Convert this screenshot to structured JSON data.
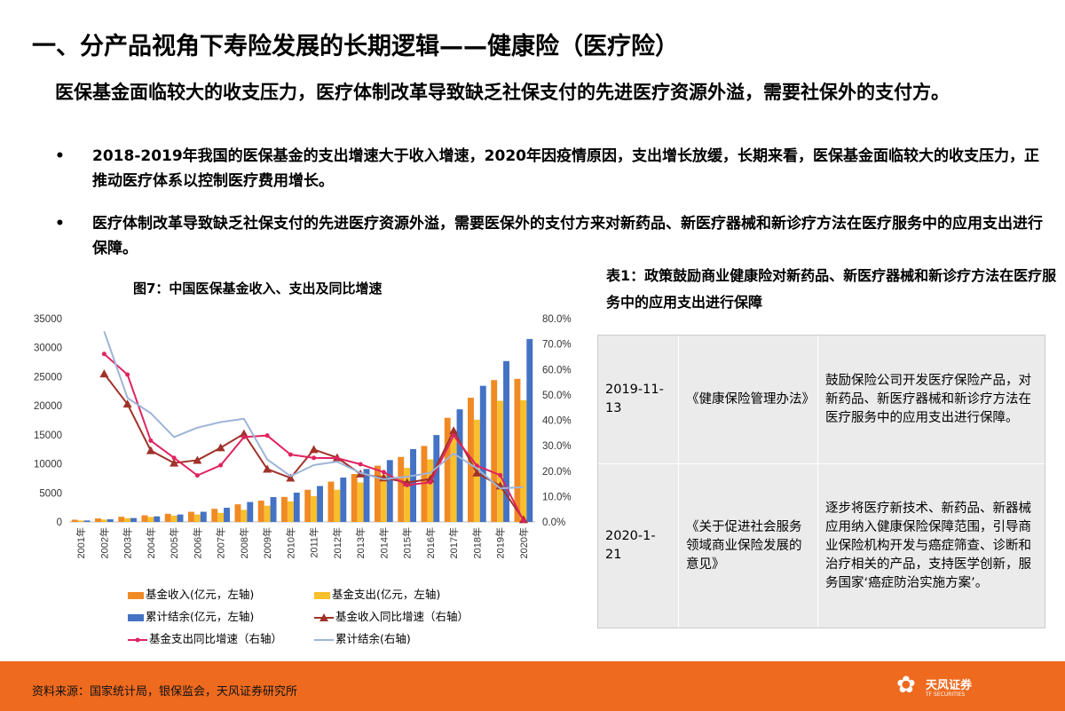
{
  "page": {
    "title": "一、分产品视角下寿险发展的长期逻辑——健康险（医疗险）",
    "headline": "医保基金面临较大的收支压力，医疗体制改革导致缺乏社保支付的先进医疗资源外溢，需要社保外的支付方。",
    "bullets": [
      {
        "marker": "•",
        "text": "2018-2019年我国的医保基金的支出增速大于收入增速，2020年因疫情原因，支出增长放缓，长期来看，医保基金面临较大的收支压力，正推动医疗体系以控制医疗费用增长。"
      },
      {
        "marker": "•",
        "text": "医疗体制改革导致缺乏社保支付的先进医疗资源外溢，需要医保外的支付方来对新药品、新医疗器械和新诊疗方法在医疗服务中的应用支出进行保障。"
      }
    ]
  },
  "figure": {
    "caption": "图7：中国医保基金收入、支出及同比增速"
  },
  "chart_data": {
    "type": "bar",
    "categories": [
      "2001年",
      "2002年",
      "2003年",
      "2004年",
      "2005年",
      "2006年",
      "2007年",
      "2008年",
      "2009年",
      "2010年",
      "2011年",
      "2012年",
      "2013年",
      "2014年",
      "2015年",
      "2016年",
      "2017年",
      "2018年",
      "2019年",
      "2020年"
    ],
    "y_left": {
      "ylim": [
        0,
        35000
      ],
      "ticks": [
        "0",
        "5000",
        "10000",
        "15000",
        "20000",
        "25000",
        "30000",
        "35000"
      ]
    },
    "y_right": {
      "ylim": [
        0,
        80
      ],
      "ticks": [
        "0.0%",
        "10.0%",
        "20.0%",
        "30.0%",
        "40.0%",
        "50.0%",
        "60.0%",
        "70.0%",
        "80.0%"
      ]
    },
    "series": [
      {
        "name": "基金收入(亿元，左轴)",
        "type": "bar",
        "axis": "left",
        "color": "#f08a24",
        "values": [
          384,
          608,
          890,
          1140,
          1405,
          1747,
          2257,
          3040,
          3672,
          4309,
          5539,
          6939,
          8248,
          9687,
          11193,
          13084,
          17932,
          21384,
          24421,
          24638
        ]
      },
      {
        "name": "基金支出(亿元，左轴)",
        "type": "bar",
        "axis": "left",
        "color": "#f9bf2c",
        "values": [
          244,
          409,
          654,
          862,
          1079,
          1277,
          1562,
          2084,
          2797,
          3538,
          4431,
          5544,
          6801,
          8134,
          9312,
          10767,
          14422,
          17608,
          20854,
          20949
        ]
      },
      {
        "name": "累计结余(亿元，左轴)",
        "type": "bar",
        "axis": "left",
        "color": "#4472c4",
        "values": [
          253,
          451,
          671,
          958,
          1278,
          1752,
          2441,
          3432,
          4276,
          5047,
          6180,
          7644,
          9116,
          10645,
          12543,
          14964,
          19386,
          23440,
          27697,
          31500
        ]
      },
      {
        "name": "基金收入同比增速（右轴）",
        "type": "line",
        "axis": "right",
        "color": "#a0322a",
        "marker": "triangle",
        "values": [
          null,
          58.3,
          46.4,
          28.1,
          23.2,
          24.3,
          29.2,
          34.7,
          20.8,
          17.3,
          28.5,
          25.3,
          18.9,
          17.4,
          15.5,
          16.9,
          35.9,
          19.3,
          14.2,
          0.9
        ]
      },
      {
        "name": "基金支出同比增速（右轴）",
        "type": "line",
        "axis": "right",
        "color": "#e0235f",
        "marker": "dot",
        "values": [
          null,
          66.1,
          58.0,
          32.0,
          25.2,
          18.3,
          22.3,
          33.4,
          34.0,
          26.5,
          25.2,
          25.1,
          22.7,
          19.6,
          14.5,
          15.6,
          34.0,
          22.1,
          18.4,
          0.5
        ]
      },
      {
        "name": "累计结余(右轴)",
        "type": "line",
        "axis": "right",
        "color": "#9db4d8",
        "marker": "none",
        "values": [
          null,
          75.0,
          48.8,
          42.8,
          33.4,
          37.1,
          39.3,
          40.6,
          24.6,
          18.0,
          22.4,
          23.7,
          19.3,
          16.8,
          17.8,
          19.3,
          26.9,
          21.1,
          13.2,
          13.7
        ]
      }
    ]
  },
  "table": {
    "caption": "表1：政策鼓励商业健康险对新药品、新医疗器械和新诊疗方法在医疗服务中的应用支出进行保障",
    "rows": [
      {
        "date": "2019-11-13",
        "doc": "《健康保险管理办法》",
        "desc": "鼓励保险公司开发医疗保险产品，对新药品、新医疗器械和新诊疗方法在医疗服务中的应用支出进行保障。"
      },
      {
        "date": "2020-1-21",
        "doc": "《关于促进社会服务领域商业保险发展的意见》",
        "desc": "逐步将医疗新技术、新药品、新器械应用纳入健康保险保障范围，引导商业保险机构开发与癌症筛查、诊断和治疗相关的产品，支持医学创新，服务国家‘癌症防治实施方案’。"
      }
    ]
  },
  "footer": {
    "source": "资料来源：国家统计局，银保监会，天风证券研究所",
    "logo_text": "天风证券",
    "logo_en": "TF SECURITIES",
    "brand_color": "#ee6a1f"
  }
}
